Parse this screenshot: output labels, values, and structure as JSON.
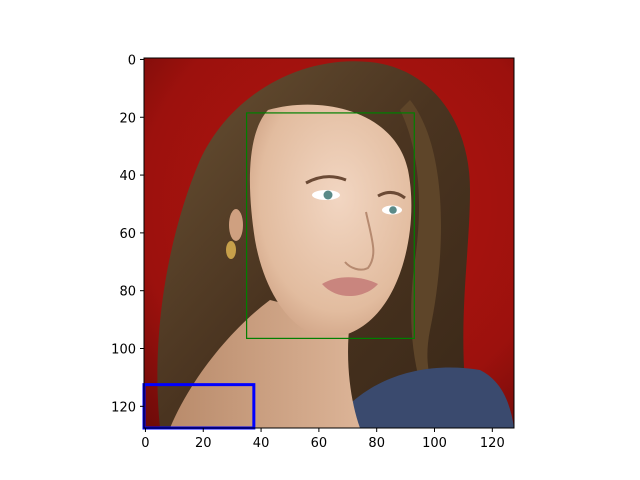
{
  "chart_data": {
    "type": "image",
    "title": "",
    "xlabel": "",
    "ylabel": "",
    "xlim": [
      -0.5,
      127.5
    ],
    "ylim": [
      127.5,
      -0.5
    ],
    "y_inverted": true,
    "grid": false,
    "x_ticks": [
      0,
      20,
      40,
      60,
      80,
      100,
      120
    ],
    "y_ticks": [
      0,
      20,
      40,
      60,
      80,
      100,
      120
    ],
    "image": {
      "description_icon": "portrait-photo",
      "background_color": "#a0130f",
      "hair_color": "#5a4128",
      "skin_color": "#e6c2a6"
    },
    "boxes": [
      {
        "name": "green-box",
        "color": "#008000",
        "x0": 35,
        "y0": 18.5,
        "x1": 93,
        "y1": 96.5,
        "stroke": "thin"
      },
      {
        "name": "blue-box",
        "color": "#0000ff",
        "x0": -0.5,
        "y0": 112.5,
        "x1": 37.5,
        "y1": 127.5,
        "stroke": "thick"
      }
    ]
  }
}
